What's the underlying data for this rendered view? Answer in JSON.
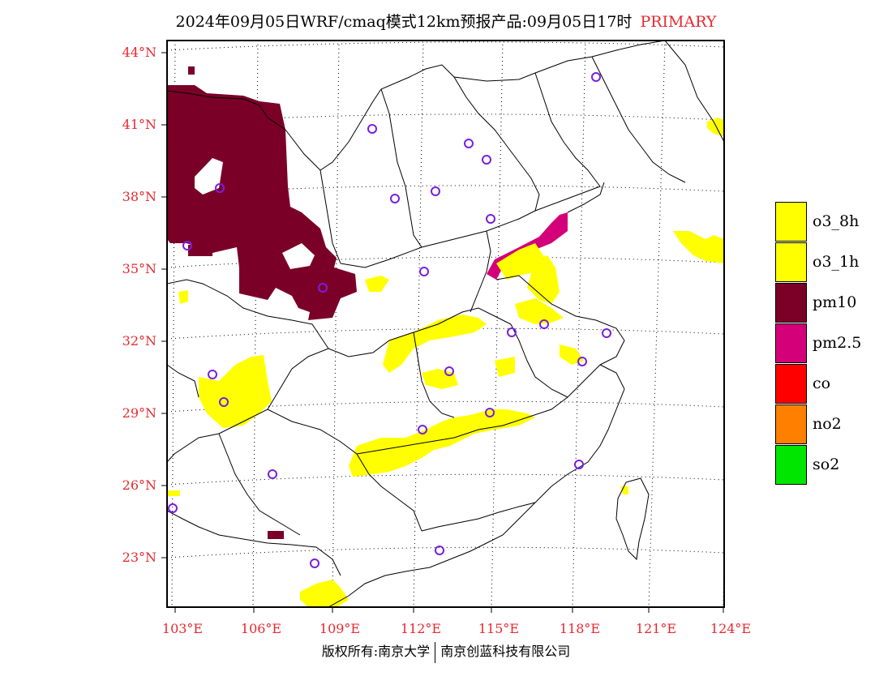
{
  "title": {
    "main": "2024年09月05日WRF/cmaq模式12km预报产品:09月05日17时",
    "tag": "PRIMARY"
  },
  "lat_labels": [
    "44°N",
    "41°N",
    "38°N",
    "35°N",
    "32°N",
    "29°N",
    "26°N",
    "23°N"
  ],
  "lon_labels": [
    "103°E",
    "106°E",
    "109°E",
    "112°E",
    "115°E",
    "118°E",
    "121°E",
    "124°E"
  ],
  "legend": [
    {
      "label": "o3_8h",
      "color": "#ffff00"
    },
    {
      "label": "o3_1h",
      "color": "#ffff00"
    },
    {
      "label": "pm10",
      "color": "#7b0028"
    },
    {
      "label": "pm2.5",
      "color": "#d4007a"
    },
    {
      "label": "co",
      "color": "#ff0000"
    },
    {
      "label": "no2",
      "color": "#ff7f00"
    },
    {
      "label": "so2",
      "color": "#00e600"
    }
  ],
  "footer": {
    "left": "版权所有:南京大学",
    "right": "南京创蓝科技有限公司"
  }
}
